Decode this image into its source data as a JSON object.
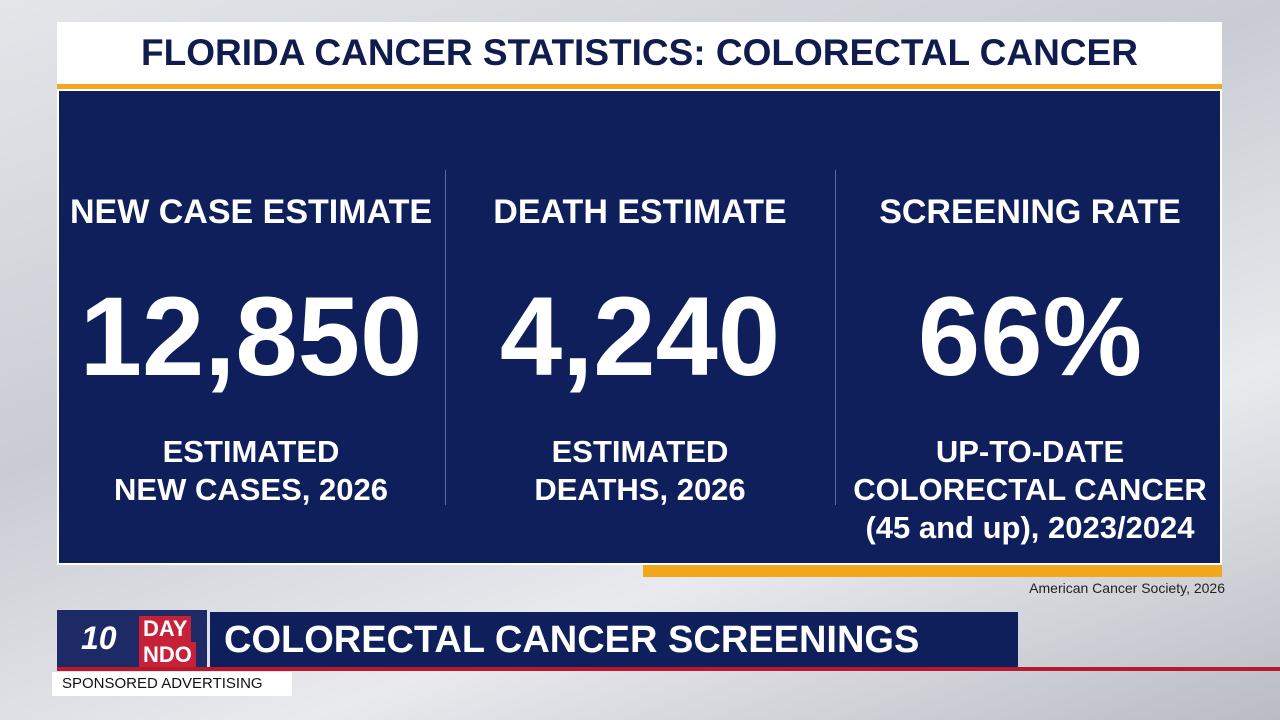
{
  "header": {
    "title": "FLORIDA CANCER STATISTICS: COLORECTAL CANCER"
  },
  "panels": [
    {
      "heading": "NEW CASE ESTIMATE",
      "value": "12,850",
      "caption": [
        "ESTIMATED",
        "NEW CASES, 2026"
      ]
    },
    {
      "heading": "DEATH ESTIMATE",
      "value": "4,240",
      "caption": [
        "ESTIMATED",
        "DEATHS, 2026"
      ]
    },
    {
      "heading": "SCREENING RATE",
      "value": "66%",
      "caption": [
        "UP-TO-DATE",
        "COLORECTAL CANCER",
        "(45 and up), 2023/2024"
      ]
    }
  ],
  "source": "American Cancer Society, 2026",
  "lower_third": {
    "logo": [
      "10",
      "DAY",
      "NDO"
    ],
    "title": "COLORECTAL CANCER SCREENINGS",
    "label": "SPONSORED ADVERTISING"
  }
}
